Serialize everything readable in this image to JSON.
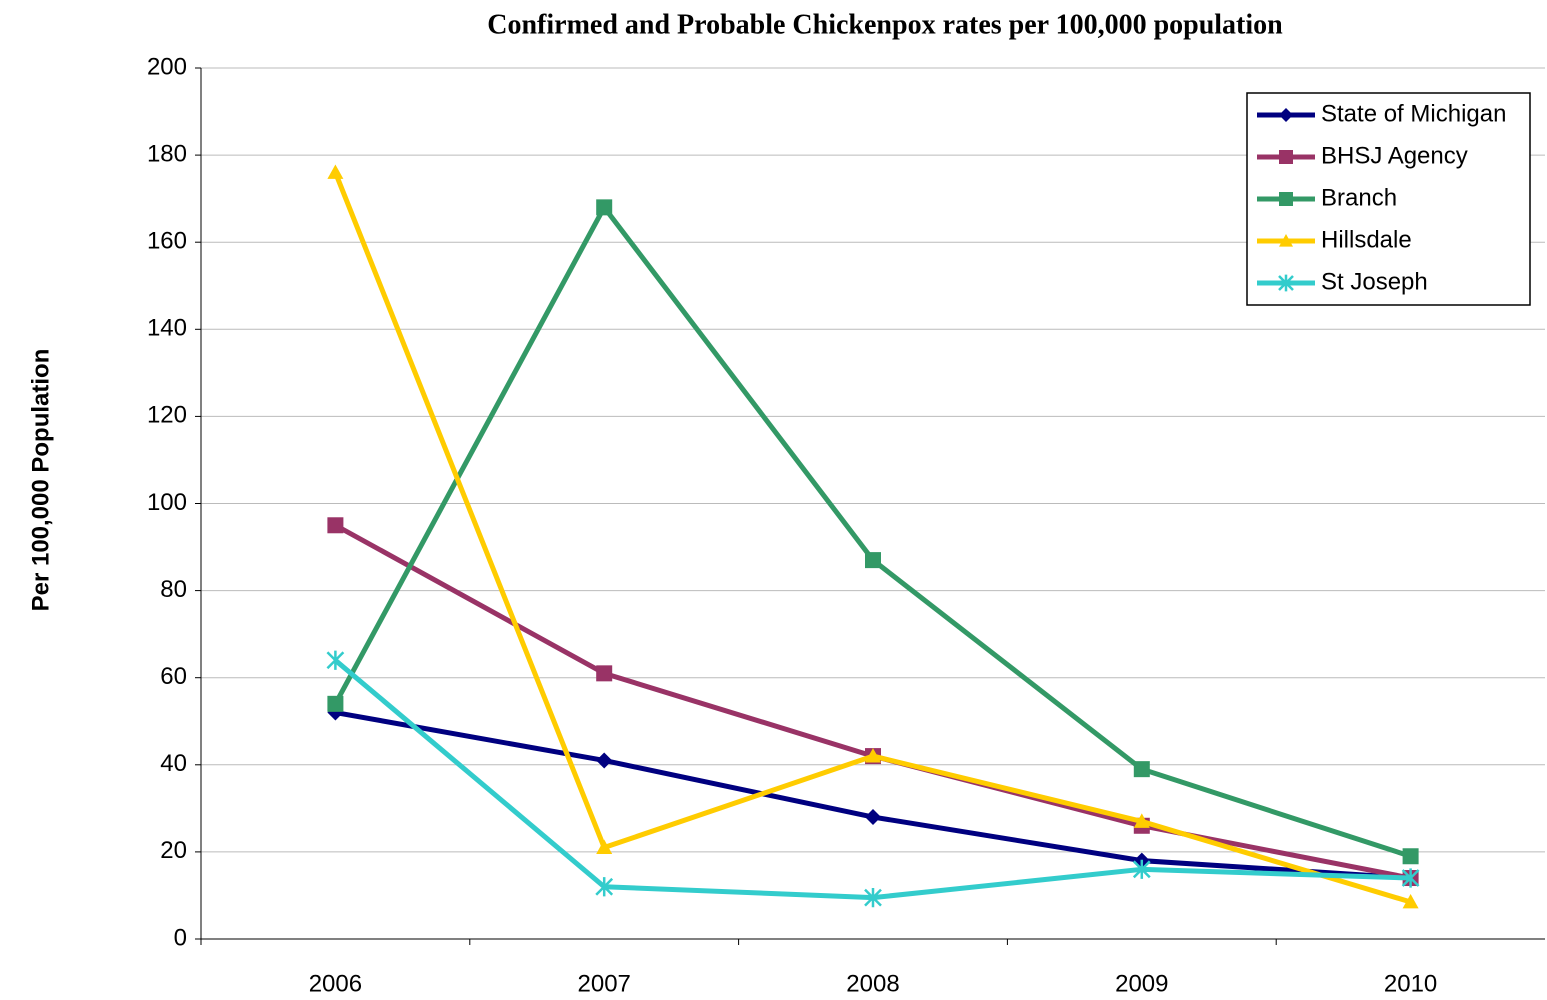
{
  "chart_data": {
    "type": "line",
    "title": "Confirmed and Probable Chickenpox rates per 100,000 population",
    "y_label": "Per 100,000 Population",
    "categories": [
      "2006",
      "2007",
      "2008",
      "2009",
      "2010"
    ],
    "series": [
      {
        "name": "State of Michigan",
        "color": "#000080",
        "marker": "diamond",
        "values": [
          52,
          41,
          28,
          18,
          14
        ]
      },
      {
        "name": "BHSJ Agency",
        "color": "#993366",
        "marker": "square",
        "values": [
          95,
          61,
          42,
          26,
          14
        ]
      },
      {
        "name": "Branch",
        "color": "#339966",
        "marker": "square",
        "values": [
          54,
          168,
          87,
          39,
          19
        ]
      },
      {
        "name": "Hillsdale",
        "color": "#FFCC00",
        "marker": "triangle",
        "values": [
          176,
          21,
          42,
          27,
          8.5
        ]
      },
      {
        "name": "St Joseph",
        "color": "#33CCCC",
        "marker": "star",
        "values": [
          64,
          12,
          9.5,
          16,
          14
        ]
      }
    ],
    "ylim": [
      0,
      200
    ],
    "yticks": [
      0,
      20,
      40,
      60,
      80,
      100,
      120,
      140,
      160,
      180,
      200
    ],
    "grid": true,
    "legend": "top-right"
  }
}
